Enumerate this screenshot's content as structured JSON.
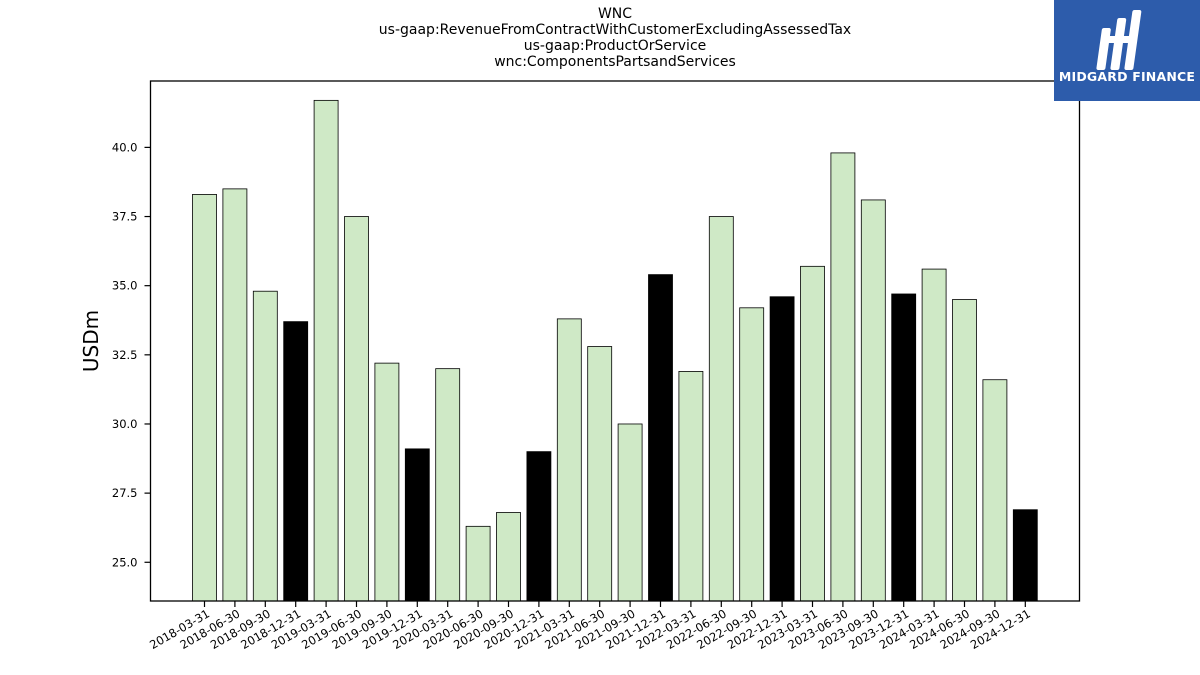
{
  "header": {
    "line1": "WNC",
    "line2": "us-gaap:RevenueFromContractWithCustomerExcludingAssessedTax",
    "line3": "us-gaap:ProductOrService",
    "line4": "wnc:ComponentsPartsandServices"
  },
  "logo": {
    "text": "MIDGARD FINANCE",
    "icon": "midgard-logo-icon"
  },
  "colors": {
    "quarter_bar": "#cfe9c6",
    "year_end_bar": "#000000",
    "bar_edge": "#000000"
  },
  "chart_data": {
    "type": "bar",
    "title": "WNC",
    "ylabel": "USDm",
    "ylim": [
      23.6,
      42.4
    ],
    "yticks": [
      "25.0",
      "27.5",
      "30.0",
      "32.5",
      "35.0",
      "37.5",
      "40.0"
    ],
    "grid": false,
    "categories": [
      "2018-03-31",
      "2018-06-30",
      "2018-09-30",
      "2018-12-31",
      "2019-03-31",
      "2019-06-30",
      "2019-09-30",
      "2019-12-31",
      "2020-03-31",
      "2020-06-30",
      "2020-09-30",
      "2020-12-31",
      "2021-03-31",
      "2021-06-30",
      "2021-09-30",
      "2021-12-31",
      "2022-03-31",
      "2022-06-30",
      "2022-09-30",
      "2022-12-31",
      "2023-03-31",
      "2023-06-30",
      "2023-09-30",
      "2023-12-31",
      "2024-03-31",
      "2024-06-30",
      "2024-09-30",
      "2024-12-31"
    ],
    "values": [
      38.3,
      38.5,
      34.8,
      33.7,
      41.7,
      37.5,
      32.2,
      29.1,
      32.0,
      26.3,
      26.8,
      29.0,
      33.8,
      32.8,
      30.0,
      35.4,
      31.9,
      37.5,
      34.2,
      34.6,
      35.7,
      39.8,
      38.1,
      34.7,
      35.6,
      34.5,
      31.6,
      26.9
    ],
    "highlight": [
      false,
      false,
      false,
      true,
      false,
      false,
      false,
      true,
      false,
      false,
      false,
      true,
      false,
      false,
      false,
      true,
      false,
      false,
      false,
      true,
      false,
      false,
      false,
      true,
      false,
      false,
      false,
      true
    ]
  }
}
